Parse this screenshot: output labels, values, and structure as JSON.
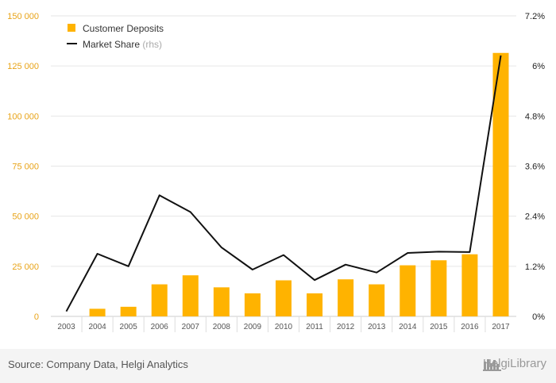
{
  "chart_data": {
    "type": "bar",
    "categories": [
      "2003",
      "2004",
      "2005",
      "2006",
      "2007",
      "2008",
      "2009",
      "2010",
      "2011",
      "2012",
      "2013",
      "2014",
      "2015",
      "2016",
      "2017"
    ],
    "series": [
      {
        "name": "Customer Deposits",
        "type": "bar",
        "axis": "left",
        "color": "#ffb300",
        "values": [
          0,
          3800,
          4800,
          16000,
          20500,
          14500,
          11500,
          18000,
          11500,
          18500,
          16000,
          25500,
          28000,
          31000,
          131500
        ]
      },
      {
        "name": "Market Share",
        "name_suffix": "(rhs)",
        "type": "line",
        "axis": "right",
        "color": "#111111",
        "values": [
          0.12,
          1.5,
          1.2,
          2.9,
          2.5,
          1.65,
          1.12,
          1.47,
          0.87,
          1.24,
          1.05,
          1.52,
          1.55,
          1.54,
          6.25
        ]
      }
    ],
    "yleft": {
      "lim": [
        0,
        150000
      ],
      "ticks": [
        0,
        25000,
        50000,
        75000,
        100000,
        125000,
        150000
      ],
      "tick_labels": [
        "0",
        "25 000",
        "50 000",
        "75 000",
        "100 000",
        "125 000",
        "150 000"
      ]
    },
    "yright": {
      "lim": [
        0,
        7.2
      ],
      "ticks": [
        0,
        1.2,
        2.4,
        3.6,
        4.8,
        6,
        7.2
      ],
      "tick_labels": [
        "0%",
        "1.2%",
        "2.4%",
        "3.6%",
        "4.8%",
        "6%",
        "7.2%"
      ]
    },
    "legend": {
      "placement": "top-left"
    },
    "grid": true,
    "title": "",
    "xlabel": "",
    "ylabel": ""
  },
  "footer": {
    "source": "Source: Company Data, Helgi Analytics",
    "brand": "HelgiLibrary"
  },
  "colors": {
    "bar": "#ffb300",
    "line": "#111111",
    "left_axis": "#e8a317"
  }
}
